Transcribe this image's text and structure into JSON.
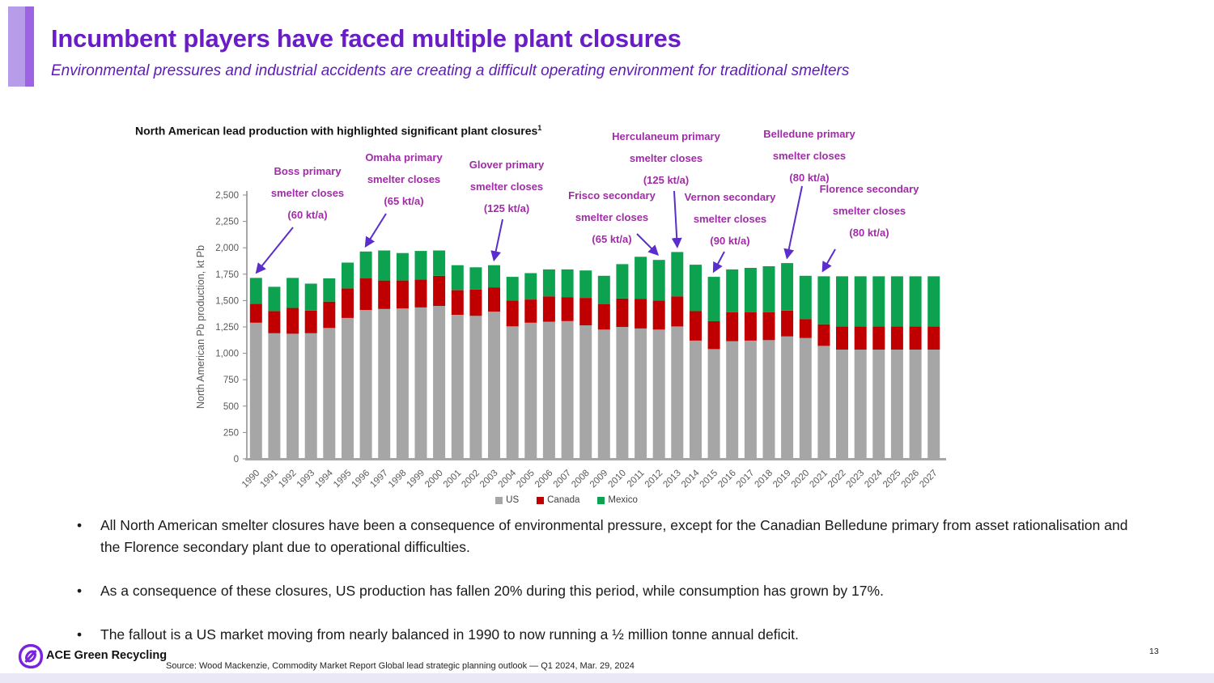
{
  "header": {
    "title": "Incumbent players have faced multiple plant closures",
    "subtitle": "Environmental pressures and industrial accidents are creating a difficult operating environment for traditional smelters"
  },
  "chart_data": {
    "type": "bar",
    "stacked": true,
    "title": "North American lead production with highlighted significant plant closures",
    "title_superscript": "1",
    "ylabel": "North American Pb production, kt Pb",
    "xlabel": "",
    "ylim": [
      0,
      2500
    ],
    "ytick_step": 250,
    "grid": false,
    "legend_position": "bottom",
    "categories": [
      1990,
      1991,
      1992,
      1993,
      1994,
      1995,
      1996,
      1997,
      1998,
      1999,
      2000,
      2001,
      2002,
      2003,
      2004,
      2005,
      2006,
      2007,
      2008,
      2009,
      2010,
      2011,
      2012,
      2013,
      2014,
      2015,
      2016,
      2017,
      2018,
      2019,
      2020,
      2021,
      2022,
      2023,
      2024,
      2025,
      2026,
      2027
    ],
    "series": [
      {
        "name": "US",
        "color": "#a6a6a6",
        "values": [
          1290,
          1190,
          1185,
          1190,
          1240,
          1335,
          1410,
          1420,
          1425,
          1435,
          1450,
          1365,
          1355,
          1395,
          1255,
          1290,
          1300,
          1305,
          1265,
          1225,
          1250,
          1235,
          1225,
          1255,
          1120,
          1040,
          1115,
          1120,
          1125,
          1160,
          1145,
          1070,
          1035,
          1035,
          1035,
          1035,
          1035,
          1035
        ]
      },
      {
        "name": "Canada",
        "color": "#c00000",
        "values": [
          180,
          210,
          245,
          215,
          250,
          280,
          300,
          270,
          265,
          265,
          285,
          235,
          250,
          230,
          245,
          220,
          240,
          225,
          260,
          240,
          270,
          280,
          275,
          285,
          280,
          265,
          275,
          270,
          265,
          245,
          180,
          205,
          220,
          220,
          220,
          220,
          220,
          220
        ]
      },
      {
        "name": "Mexico",
        "color": "#0ca24f",
        "values": [
          245,
          230,
          285,
          255,
          220,
          245,
          255,
          285,
          260,
          270,
          240,
          235,
          210,
          210,
          225,
          250,
          255,
          265,
          260,
          270,
          325,
          400,
          385,
          420,
          440,
          420,
          405,
          420,
          435,
          450,
          410,
          455,
          475,
          475,
          475,
          475,
          475,
          475
        ]
      }
    ],
    "annotations": [
      {
        "plant": "Boss primary",
        "action": "smelter closes",
        "capacity": "(60 kt/a)",
        "target_year": 1990
      },
      {
        "plant": "Omaha primary",
        "action": "smelter closes",
        "capacity": "(65 kt/a)",
        "target_year": 1996
      },
      {
        "plant": "Glover primary",
        "action": "smelter closes",
        "capacity": "(125 kt/a)",
        "target_year": 2003
      },
      {
        "plant": "Frisco secondary",
        "action": "smelter closes",
        "capacity": "(65 kt/a)",
        "target_year": 2012
      },
      {
        "plant": "Herculaneum primary",
        "action": "smelter closes",
        "capacity": "(125 kt/a)",
        "target_year": 2013
      },
      {
        "plant": "Vernon secondary",
        "action": "smelter closes",
        "capacity": "(90 kt/a)",
        "target_year": 2015
      },
      {
        "plant": "Belledune primary",
        "action": "smelter closes",
        "capacity": "(80 kt/a)",
        "target_year": 2019
      },
      {
        "plant": "Florence secondary",
        "action": "smelter closes",
        "capacity": "(80 kt/a)",
        "target_year": 2021
      }
    ]
  },
  "bullets": [
    "All North American smelter closures have been a consequence of environmental pressure, except for the Canadian Belledune primary from asset rationalisation and the Florence secondary plant due to operational difficulties.",
    "As a consequence of these closures, US production has fallen 20% during this period, while consumption has grown by 17%.",
    "The fallout is a US market moving from nearly balanced in 1990 to now running a ½ million tonne annual deficit."
  ],
  "footer": {
    "company": "ACE Green Recycling",
    "source": "Source: Wood Mackenzie, Commodity Market Report Global lead strategic planning outlook — Q1 2024, Mar. 29, 2024",
    "page_number": "13"
  },
  "colors": {
    "title_purple": "#6a1cc6",
    "annotation_magenta": "#a12ba8",
    "arrow_violet": "#5b2dcb",
    "axis_gray": "#595959",
    "accent_light": "#b79ce9",
    "accent_dark": "#9c64e3",
    "bottom_strip": "#eae8f7"
  }
}
